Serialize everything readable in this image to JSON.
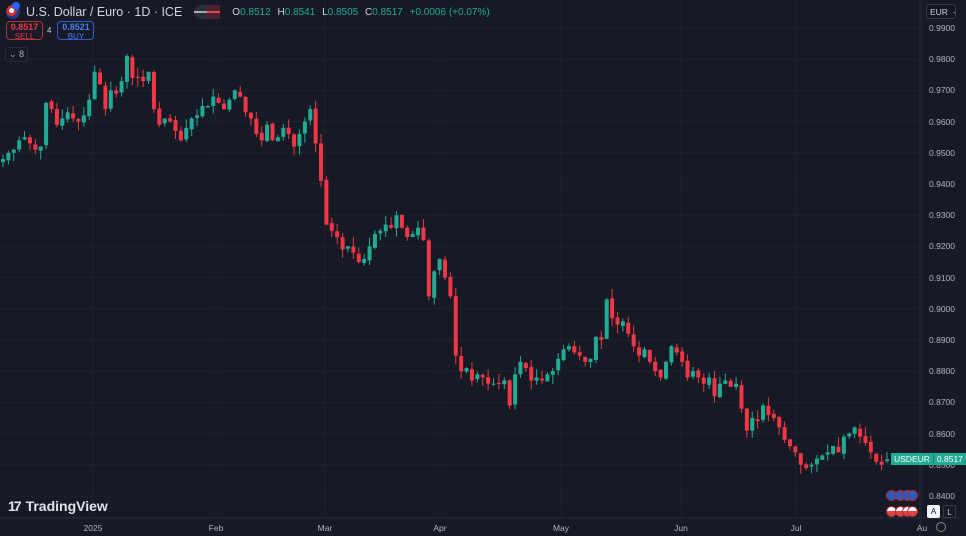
{
  "header": {
    "title": "U.S. Dollar / Euro · 1D · ICE",
    "ohlc": {
      "o_label": "O",
      "o": "0.8512",
      "h_label": "H",
      "h": "0.8541",
      "l_label": "L",
      "l": "0.8505",
      "c_label": "C",
      "c": "0.8517",
      "change": "+0.0006 (+0.07%)"
    },
    "currency_selector": "EUR"
  },
  "trade": {
    "sell_price": "0.8517",
    "sell_label": "SELL",
    "spread": "4",
    "buy_price": "0.8521",
    "buy_label": "BUY"
  },
  "indicators_collapse": {
    "count": "8"
  },
  "price_tag": {
    "symbol": "USDEUR",
    "value": "0.8517"
  },
  "brand": "TradingView",
  "scale_buttons": {
    "auto": "A",
    "log": "L"
  },
  "colors": {
    "background": "#161a25",
    "up": "#22ab94",
    "down": "#f23645",
    "grid": "#1f2330",
    "text": "#b2b5be"
  },
  "chart_data": {
    "type": "candlestick",
    "title": "U.S. Dollar / Euro · 1D · ICE",
    "symbol": "USDEUR",
    "timeframe": "1D",
    "y_ticks": [
      "0.9900",
      "0.9800",
      "0.9700",
      "0.9600",
      "0.9500",
      "0.9400",
      "0.9300",
      "0.9200",
      "0.9100",
      "0.9000",
      "0.8900",
      "0.8800",
      "0.8700",
      "0.8600",
      "0.8500",
      "0.8400"
    ],
    "x_ticks": [
      {
        "label": "2025",
        "x": 93
      },
      {
        "label": "Feb",
        "x": 216
      },
      {
        "label": "Mar",
        "x": 325
      },
      {
        "label": "Apr",
        "x": 440
      },
      {
        "label": "May",
        "x": 561
      },
      {
        "label": "Jun",
        "x": 681
      },
      {
        "label": "Jul",
        "x": 796
      },
      {
        "label": "Au",
        "x": 922
      }
    ],
    "ylim": [
      0.835,
      0.992
    ],
    "last": {
      "open": 0.8512,
      "high": 0.8541,
      "low": 0.8505,
      "close": 0.8517,
      "change": 0.0006,
      "change_pct": 0.07
    },
    "closes": [
      0.948,
      0.95,
      0.951,
      0.954,
      0.955,
      0.953,
      0.951,
      0.952,
      0.966,
      0.964,
      0.959,
      0.961,
      0.963,
      0.961,
      0.96,
      0.962,
      0.967,
      0.976,
      0.972,
      0.964,
      0.97,
      0.969,
      0.973,
      0.981,
      0.974,
      0.974,
      0.973,
      0.976,
      0.964,
      0.959,
      0.961,
      0.96,
      0.957,
      0.954,
      0.958,
      0.961,
      0.962,
      0.965,
      0.965,
      0.968,
      0.966,
      0.964,
      0.967,
      0.97,
      0.968,
      0.963,
      0.961,
      0.956,
      0.954,
      0.959,
      0.954,
      0.955,
      0.958,
      0.956,
      0.952,
      0.956,
      0.96,
      0.964,
      0.953,
      0.941,
      0.927,
      0.925,
      0.923,
      0.919,
      0.92,
      0.918,
      0.915,
      0.916,
      0.92,
      0.924,
      0.925,
      0.927,
      0.926,
      0.93,
      0.926,
      0.923,
      0.924,
      0.926,
      0.922,
      0.904,
      0.912,
      0.916,
      0.91,
      0.904,
      0.885,
      0.88,
      0.881,
      0.877,
      0.879,
      0.878,
      0.876,
      0.876,
      0.876,
      0.877,
      0.869,
      0.879,
      0.883,
      0.881,
      0.877,
      0.878,
      0.877,
      0.879,
      0.88,
      0.884,
      0.887,
      0.888,
      0.886,
      0.885,
      0.883,
      0.884,
      0.891,
      0.89,
      0.903,
      0.897,
      0.895,
      0.896,
      0.892,
      0.888,
      0.885,
      0.887,
      0.883,
      0.88,
      0.878,
      0.883,
      0.888,
      0.886,
      0.883,
      0.878,
      0.88,
      0.878,
      0.876,
      0.878,
      0.872,
      0.876,
      0.877,
      0.875,
      0.876,
      0.868,
      0.861,
      0.865,
      0.864,
      0.869,
      0.866,
      0.865,
      0.862,
      0.858,
      0.856,
      0.854,
      0.85,
      0.849,
      0.85,
      0.852,
      0.853,
      0.854,
      0.856,
      0.854,
      0.859,
      0.86,
      0.862,
      0.859,
      0.857,
      0.854,
      0.851,
      0.85,
      0.8517
    ]
  }
}
